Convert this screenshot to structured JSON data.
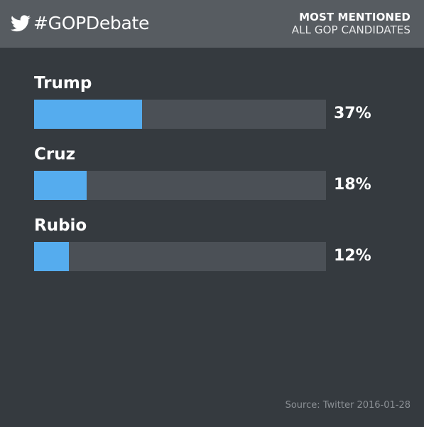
{
  "header": {
    "hashtag": "#GOPDebate",
    "title": "MOST MENTIONED",
    "subtitle": "ALL GOP CANDIDATES",
    "icon": "twitter-bird-icon"
  },
  "colors": {
    "background": "#353a3f",
    "header_background": "#575c61",
    "bar_track": "#4b5056",
    "bar_fill": "#55acee"
  },
  "chart_data": {
    "type": "bar",
    "orientation": "horizontal",
    "categories": [
      "Trump",
      "Cruz",
      "Rubio"
    ],
    "values": [
      37,
      18,
      12
    ],
    "value_labels": [
      "37%",
      "18%",
      "12%"
    ],
    "unit": "%",
    "title": "MOST MENTIONED",
    "subtitle": "ALL GOP CANDIDATES",
    "xlim": [
      0,
      100
    ],
    "grid": false
  },
  "footer": {
    "source": "Source: Twitter 2016-01-28"
  }
}
